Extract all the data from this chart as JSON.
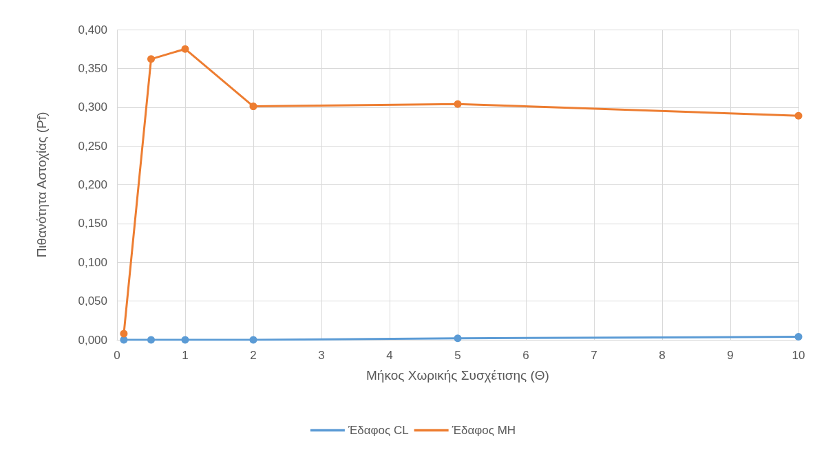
{
  "chart_data": {
    "type": "line",
    "xlabel": "Μήκος Χωρικής Συσχέτισης (Θ)",
    "ylabel": "Πιθανότητα Αστοχίας (Pf)",
    "x": [
      0.1,
      0.5,
      1,
      2,
      5,
      10
    ],
    "series": [
      {
        "name": "Έδαφος CL",
        "color": "#5b9bd5",
        "values": [
          0,
          0,
          0,
          0,
          0.002,
          0.004
        ]
      },
      {
        "name": "Έδαφος MH",
        "color": "#ed7d31",
        "values": [
          0.008,
          0.362,
          0.375,
          0.301,
          0.304,
          0.289
        ]
      }
    ],
    "xlim": [
      0,
      10
    ],
    "xticks": [
      0,
      1,
      2,
      3,
      4,
      5,
      6,
      7,
      8,
      9,
      10
    ],
    "ylim": [
      0,
      0.4
    ],
    "yticks": [
      {
        "value": 0,
        "label": "0,000"
      },
      {
        "value": 0.05,
        "label": "0,050"
      },
      {
        "value": 0.1,
        "label": "0,100"
      },
      {
        "value": 0.15,
        "label": "0,150"
      },
      {
        "value": 0.2,
        "label": "0,200"
      },
      {
        "value": 0.25,
        "label": "0,250"
      },
      {
        "value": 0.3,
        "label": "0,300"
      },
      {
        "value": 0.35,
        "label": "0,350"
      },
      {
        "value": 0.4,
        "label": "0,400"
      }
    ],
    "grid": true,
    "legend": "bottom",
    "marker": "circle",
    "line_style": "solid"
  }
}
